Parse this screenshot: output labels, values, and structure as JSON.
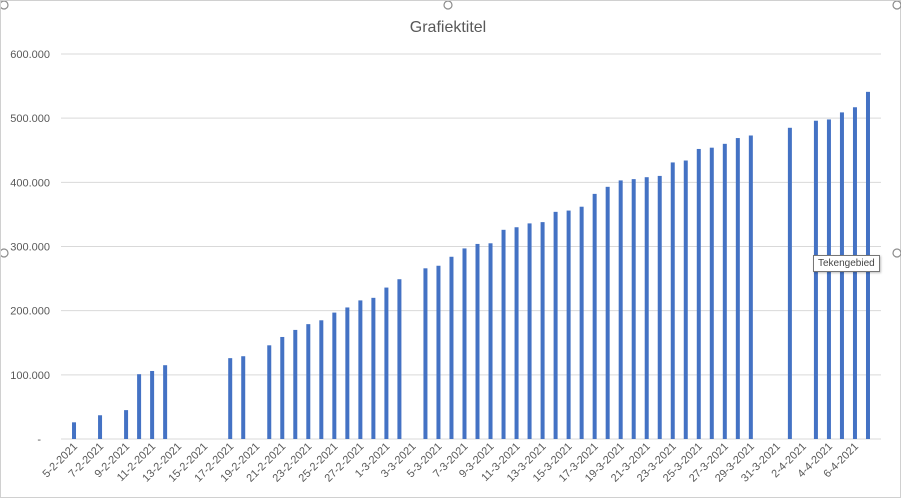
{
  "chart_data": {
    "type": "bar",
    "title": "Grafiektitel",
    "ylim": [
      0,
      600000
    ],
    "y_ticks": [
      "-",
      "100.000",
      "200.000",
      "300.000",
      "400.000",
      "500.000",
      "600.000"
    ],
    "x_tick_labels": [
      "5-2-2021",
      "7-2-2021",
      "9-2-2021",
      "11-2-2021",
      "13-2-2021",
      "15-2-2021",
      "17-2-2021",
      "19-2-2021",
      "21-2-2021",
      "23-2-2021",
      "25-2-2021",
      "27-2-2021",
      "1-3-2021",
      "3-3-2021",
      "5-3-2021",
      "7-3-2021",
      "9-3-2021",
      "11-3-2021",
      "13-3-2021",
      "15-3-2021",
      "17-3-2021",
      "19-3-2021",
      "21-3-2021",
      "23-3-2021",
      "25-3-2021",
      "27-3-2021",
      "29-3-2021",
      "31-3-2021",
      "2-4-2021",
      "4-4-2021",
      "6-4-2021"
    ],
    "grid": true,
    "bars": [
      {
        "x": "5-2-2021",
        "y": 26000
      },
      {
        "x": "7-2-2021",
        "y": 37000
      },
      {
        "x": "9-2-2021",
        "y": 45000
      },
      {
        "x": "10-2-2021",
        "y": 101000
      },
      {
        "x": "11-2-2021",
        "y": 106000
      },
      {
        "x": "12-2-2021",
        "y": 115000
      },
      {
        "x": "17-2-2021",
        "y": 126000
      },
      {
        "x": "18-2-2021",
        "y": 129000
      },
      {
        "x": "20-2-2021",
        "y": 146000
      },
      {
        "x": "21-2-2021",
        "y": 159000
      },
      {
        "x": "22-2-2021",
        "y": 170000
      },
      {
        "x": "23-2-2021",
        "y": 179000
      },
      {
        "x": "24-2-2021",
        "y": 185000
      },
      {
        "x": "25-2-2021",
        "y": 197000
      },
      {
        "x": "26-2-2021",
        "y": 205000
      },
      {
        "x": "27-2-2021",
        "y": 216000
      },
      {
        "x": "28-2-2021",
        "y": 220000
      },
      {
        "x": "1-3-2021",
        "y": 236000
      },
      {
        "x": "2-3-2021",
        "y": 249000
      },
      {
        "x": "4-3-2021",
        "y": 266000
      },
      {
        "x": "5-3-2021",
        "y": 270000
      },
      {
        "x": "6-3-2021",
        "y": 284000
      },
      {
        "x": "7-3-2021",
        "y": 297000
      },
      {
        "x": "8-3-2021",
        "y": 304000
      },
      {
        "x": "9-3-2021",
        "y": 305000
      },
      {
        "x": "10-3-2021",
        "y": 326000
      },
      {
        "x": "11-3-2021",
        "y": 330000
      },
      {
        "x": "12-3-2021",
        "y": 336000
      },
      {
        "x": "13-3-2021",
        "y": 338000
      },
      {
        "x": "14-3-2021",
        "y": 354000
      },
      {
        "x": "15-3-2021",
        "y": 356000
      },
      {
        "x": "16-3-2021",
        "y": 362000
      },
      {
        "x": "17-3-2021",
        "y": 382000
      },
      {
        "x": "18-3-2021",
        "y": 393000
      },
      {
        "x": "19-3-2021",
        "y": 403000
      },
      {
        "x": "20-3-2021",
        "y": 405000
      },
      {
        "x": "21-3-2021",
        "y": 408000
      },
      {
        "x": "22-3-2021",
        "y": 410000
      },
      {
        "x": "23-3-2021",
        "y": 431000
      },
      {
        "x": "24-3-2021",
        "y": 434000
      },
      {
        "x": "25-3-2021",
        "y": 452000
      },
      {
        "x": "26-3-2021",
        "y": 454000
      },
      {
        "x": "27-3-2021",
        "y": 460000
      },
      {
        "x": "28-3-2021",
        "y": 469000
      },
      {
        "x": "29-3-2021",
        "y": 473000
      },
      {
        "x": "1-4-2021",
        "y": 485000
      },
      {
        "x": "3-4-2021",
        "y": 496000
      },
      {
        "x": "4-4-2021",
        "y": 498000
      },
      {
        "x": "5-4-2021",
        "y": 509000
      },
      {
        "x": "6-4-2021",
        "y": 517000
      },
      {
        "x": "7-4-2021",
        "y": 541000
      }
    ],
    "bar_color": "#4472c4"
  },
  "tooltip": "Tekengebied"
}
